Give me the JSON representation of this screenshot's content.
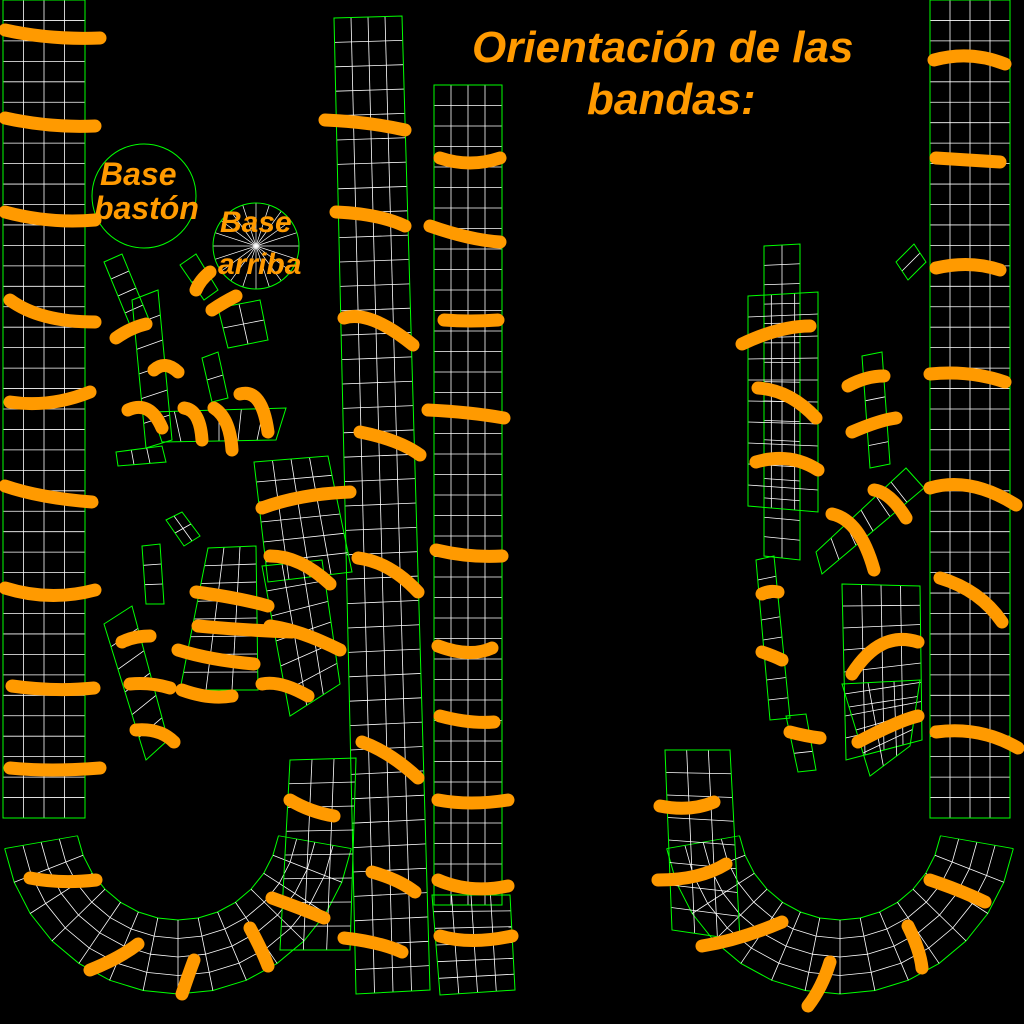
{
  "title": {
    "line1": "Orientación de las",
    "line2": "bandas:"
  },
  "labels": {
    "base_baston_line1": "Base",
    "base_baston_line2": "bastón",
    "base_arriba_line1": "Base",
    "base_arriba_line2": "arriba"
  },
  "colors": {
    "background": "#000000",
    "uv_border": "#00ff00",
    "uv_grid": "#ffffff",
    "band_stroke": "#ff9a00",
    "text": "#ff9a00"
  }
}
